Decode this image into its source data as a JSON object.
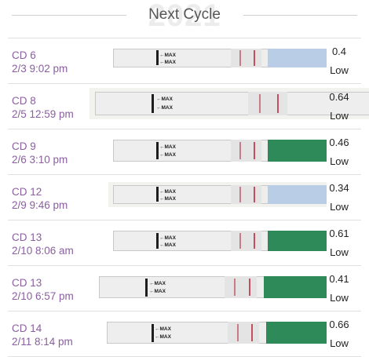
{
  "header": {
    "title": "Next Cycle",
    "watermark": "2021"
  },
  "tests": [
    {
      "cycle_day": "CD 6",
      "datetime": "2/3 9:02 pm",
      "reading": "0.4",
      "level": "Low",
      "max_text": "←MAX",
      "handle_color": "#b9cde6",
      "handle": "blue"
    },
    {
      "cycle_day": "CD 8",
      "datetime": "2/5 12:59 pm",
      "reading": "0.64",
      "level": "Low",
      "max_text": "←MAX",
      "handle_color": "#eeeeee",
      "handle": "none"
    },
    {
      "cycle_day": "CD 9",
      "datetime": "2/6 3:10 pm",
      "reading": "0.46",
      "level": "Low",
      "max_text": "←MAX",
      "handle_color": "#2f8a5a",
      "handle": "green"
    },
    {
      "cycle_day": "CD 12",
      "datetime": "2/9 9:46 pm",
      "reading": "0.34",
      "level": "Low",
      "max_text": "←MAX",
      "handle_color": "#b9cde6",
      "handle": "blue"
    },
    {
      "cycle_day": "CD 13",
      "datetime": "2/10 8:06 am",
      "reading": "0.61",
      "level": "Low",
      "max_text": "←MAX",
      "handle_color": "#2f8a5a",
      "handle": "green"
    },
    {
      "cycle_day": "CD 13",
      "datetime": "2/10 6:57 pm",
      "reading": "0.41",
      "level": "Low",
      "max_text": "←MAX",
      "handle_color": "#2f8a5a",
      "handle": "green"
    },
    {
      "cycle_day": "CD 14",
      "datetime": "2/11 8:14 pm",
      "reading": "0.66",
      "level": "Low",
      "max_text": "←MAX",
      "handle_color": "#2f8a5a",
      "handle": "green"
    }
  ]
}
